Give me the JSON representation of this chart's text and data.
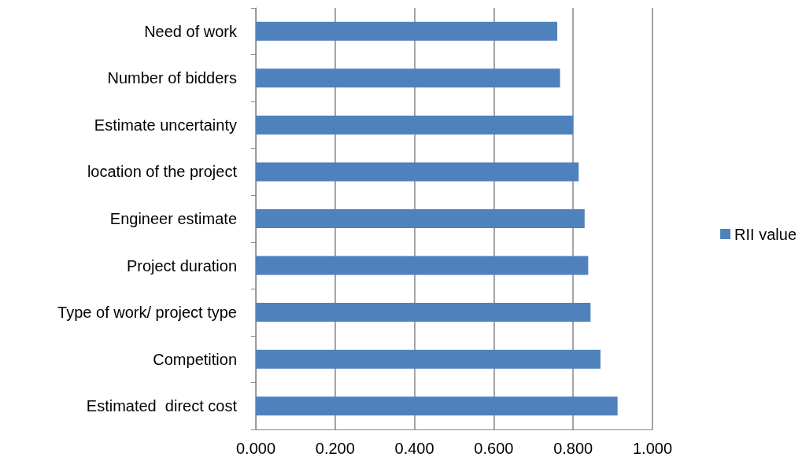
{
  "chart_data": {
    "type": "bar",
    "orientation": "horizontal",
    "categories": [
      "Need of work",
      "Number of bidders",
      "Estimate uncertainty",
      "location of the project",
      "Engineer estimate",
      "Project duration",
      "Type of work/ project type",
      "Competition",
      "Estimated  direct cost"
    ],
    "series": [
      {
        "name": "RII value",
        "color": "#4f81bd",
        "values": [
          0.76,
          0.767,
          0.8,
          0.814,
          0.829,
          0.838,
          0.844,
          0.869,
          0.912
        ]
      }
    ],
    "xlim": [
      0,
      1
    ],
    "xticks": [
      {
        "value": 0,
        "label": "0.000"
      },
      {
        "value": 0.2,
        "label": "0.200"
      },
      {
        "value": 0.4,
        "label": "0.400"
      },
      {
        "value": 0.6,
        "label": "0.600"
      },
      {
        "value": 0.8,
        "label": "0.800"
      },
      {
        "value": 1,
        "label": "1.000"
      }
    ],
    "grid": "x",
    "legend": "right"
  }
}
